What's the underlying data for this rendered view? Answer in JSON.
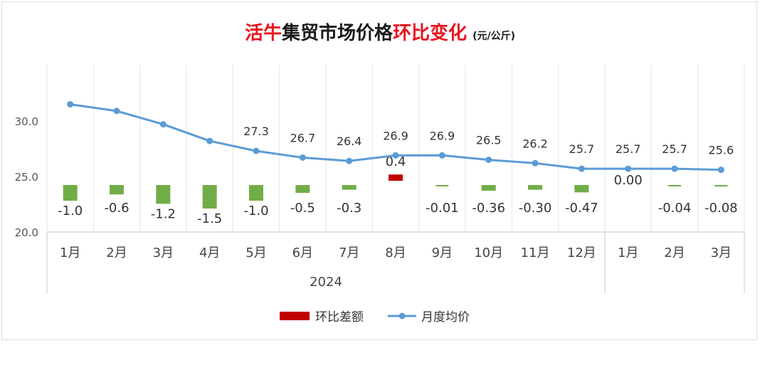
{
  "title": {
    "red1": "活牛",
    "dark": "集贸市场价格",
    "red2": "环比变化",
    "unit": "(元/公斤)"
  },
  "colors": {
    "title_red": "#e8141e",
    "line": "#5b9bd5",
    "bar_negative": "#70ad47",
    "bar_positive": "#c00000",
    "grid": "#e6e6e6"
  },
  "chart_data": {
    "type": "bar+line",
    "categories": [
      "1月",
      "2月",
      "3月",
      "4月",
      "5月",
      "6月",
      "7月",
      "8月",
      "9月",
      "10月",
      "11月",
      "12月",
      "1月",
      "2月",
      "3月"
    ],
    "year_groups": [
      {
        "label": "2024",
        "start": 0,
        "end": 11
      },
      {
        "label": "",
        "start": 12,
        "end": 14
      }
    ],
    "series": [
      {
        "name": "环比差额",
        "kind": "bar",
        "values": [
          -1.0,
          -0.6,
          -1.2,
          -1.5,
          -1.0,
          -0.5,
          -0.3,
          0.4,
          -0.01,
          -0.36,
          -0.3,
          -0.47,
          0.0,
          -0.04,
          -0.08
        ],
        "labels": [
          "-1.0",
          "-0.6",
          "-1.2",
          "-1.5",
          "-1.0",
          "-0.5",
          "-0.3",
          "0.4",
          "-0.01",
          "-0.36",
          "-0.30",
          "-0.47",
          "0.00",
          "-0.04",
          "-0.08"
        ]
      },
      {
        "name": "月度均价",
        "kind": "line",
        "values": [
          31.5,
          30.9,
          29.7,
          28.2,
          27.3,
          26.7,
          26.4,
          26.9,
          26.9,
          26.5,
          26.2,
          25.7,
          25.7,
          25.7,
          25.6
        ],
        "labels": [
          "",
          "",
          "",
          "",
          "27.3",
          "26.7",
          "26.4",
          "26.9",
          "26.9",
          "26.5",
          "26.2",
          "25.7",
          "25.7",
          "25.7",
          "25.6"
        ]
      }
    ],
    "y_axis": {
      "min": 20.0,
      "max": 30.0,
      "ticks": [
        "20.0",
        "25.0",
        "30.0"
      ]
    },
    "legend": {
      "placement": "bottom-center",
      "items": [
        "环比差额",
        "月度均价"
      ]
    },
    "grid": true
  }
}
